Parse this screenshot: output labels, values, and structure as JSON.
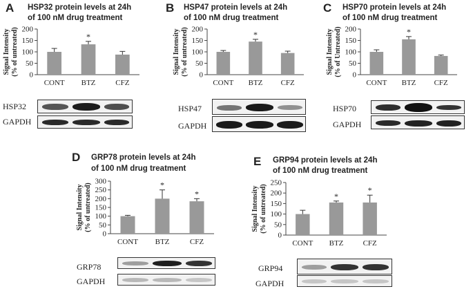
{
  "panels": [
    {
      "letter": "A",
      "title_line1": "HSP32 protein levels at 24h",
      "title_line2": "of 100 nM drug treatment",
      "blot_labels": [
        "HSP32",
        "GAPDH"
      ]
    },
    {
      "letter": "B",
      "title_line1": "HSP47 protein levels at 24h",
      "title_line2": "of 100 nM drug treatment",
      "blot_labels": [
        "HSP47",
        "GAPDH"
      ]
    },
    {
      "letter": "C",
      "title_line1": "HSP70 protein levels at 24h",
      "title_line2": "of 100 nM drug treatment",
      "blot_labels": [
        "HSP70",
        "GAPDH"
      ]
    },
    {
      "letter": "D",
      "title_line1": "GRP78 protein levels at 24h",
      "title_line2": "of 100 nM drug treatment",
      "blot_labels": [
        "GRP78",
        "GAPDH"
      ]
    },
    {
      "letter": "E",
      "title_line1": "GRP94 protein levels at 24h",
      "title_line2": "of 100 nM drug treatment",
      "blot_labels": [
        "GRP94",
        "GAPDH"
      ]
    }
  ],
  "chart_data": [
    {
      "type": "bar",
      "title": "HSP32 protein levels at 24h of 100 nM drug treatment",
      "categories": [
        "CONT",
        "BTZ",
        "CFZ"
      ],
      "values": [
        100,
        133,
        88
      ],
      "errors": [
        15,
        13,
        14
      ],
      "significance": [
        "",
        "*",
        ""
      ],
      "ylabel_line1": "Signal Intensity",
      "ylabel_line2": "(% of untreated)",
      "ylim": [
        0,
        200
      ],
      "yticks": [
        0,
        50,
        100,
        150,
        200
      ],
      "bar_color": "#999999",
      "grid": false
    },
    {
      "type": "bar",
      "title": "HSP47 protein levels at 24h of 100 nM drug treatment",
      "categories": [
        "CONT",
        "BTZ",
        "CFZ"
      ],
      "values": [
        100,
        145,
        95
      ],
      "errors": [
        6,
        10,
        8
      ],
      "significance": [
        "",
        "*",
        ""
      ],
      "ylabel_line1": "Signal Intensity",
      "ylabel_line2": "(% of untreated)",
      "ylim": [
        0,
        200
      ],
      "yticks": [
        0,
        50,
        100,
        150,
        200
      ],
      "bar_color": "#999999",
      "grid": false
    },
    {
      "type": "bar",
      "title": "HSP70 protein levels at 24h of 100 nM drug treatment",
      "categories": [
        "CONT",
        "BTZ",
        "CFZ"
      ],
      "values": [
        100,
        155,
        82
      ],
      "errors": [
        9,
        12,
        4
      ],
      "significance": [
        "",
        "*",
        ""
      ],
      "ylabel_line1": "Signal Intensity",
      "ylabel_line2": "(% of Untreated)",
      "ylim": [
        0,
        200
      ],
      "yticks": [
        0,
        50,
        100,
        150,
        200
      ],
      "bar_color": "#999999",
      "grid": false
    },
    {
      "type": "bar",
      "title": "GRP78 protein levels at 24h of 100 nM drug treatment",
      "categories": [
        "CONT",
        "BTZ",
        "CFZ"
      ],
      "values": [
        100,
        200,
        185
      ],
      "errors": [
        5,
        50,
        15
      ],
      "significance": [
        "",
        "*",
        "*"
      ],
      "ylabel_line1": "Signal Intensity",
      "ylabel_line2": "(% of untreated)",
      "ylim": [
        0,
        300
      ],
      "yticks": [
        0,
        50,
        100,
        150,
        200,
        250,
        300
      ],
      "bar_color": "#999999",
      "grid": false
    },
    {
      "type": "bar",
      "title": "GRP94 protein levels at 24h of 100 nM drug treatment",
      "categories": [
        "CONT",
        "BTZ",
        "CFZ"
      ],
      "values": [
        100,
        155,
        155
      ],
      "errors": [
        18,
        7,
        35
      ],
      "significance": [
        "",
        "*",
        "*"
      ],
      "ylabel_line1": "Signal Intensity",
      "ylabel_line2": "(% of untreated)",
      "ylim": [
        0,
        250
      ],
      "yticks": [
        0,
        50,
        100,
        150,
        200,
        250
      ],
      "bar_color": "#999999",
      "grid": false
    }
  ]
}
